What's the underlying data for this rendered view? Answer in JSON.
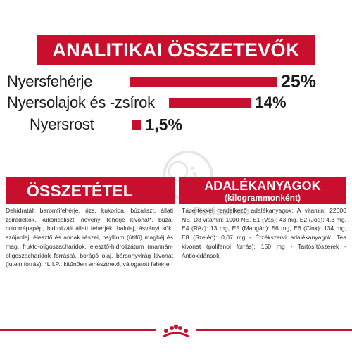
{
  "banner": {
    "title": "ANALITIKAI ÖSSZETEVŐK"
  },
  "colors": {
    "accent": "#c8102e"
  },
  "chart_data": {
    "type": "bar",
    "orientation": "horizontal",
    "categories": [
      "Nyersfehérje",
      "Nyersolajok és -zsírok",
      "Nyersrost"
    ],
    "values": [
      25,
      14,
      1.5
    ],
    "value_labels": [
      "25%",
      "14%",
      "1,5%"
    ],
    "unit": "%"
  },
  "composition": {
    "title": "ÖSSZETÉTEL",
    "text": "Dehidratált baromfifehérje, rizs, kukorica, búzaliszt, állati zsiradékok, kukoricaliszt, növényi fehérje kivonat*, búza, cukorrépapép, hidrolizált állati fehérjék, halolaj, ásványi sók, szójaolaj, élesztő és annak részei, psyllium (útifű) maghéj és mag, frukto-oligoszacharidok, élesztő-hidrolizátum (mannán-oligoszacharidok forrása), borágó olaj, bársonyvirág kivonat (lutein forrás). *L.I.P.: kitűnően emészthető, válogatott fehérje."
  },
  "additives": {
    "title": "ADALÉKANYAGOK",
    "subtitle": "(kilogrammonként)",
    "text": "Tápértékkel rendelkező adalékanyagok: A vitamin: 22000 NE, D3 vitamin: 1000 NE, E1 (Vas): 43 mg, E2 (Jód): 4,3 mg, E4 (Réz): 13 mg, E5 (Mangán): 56 mg, E6 (Cink): 134 mg, E8 (Szelén): 0,07 mg - Érzékszervi adalékanyagok: Tea kivonat (polifenol forrás): 150 mg - Tartósítószerek - Antioxidánsok."
  },
  "watermark": {
    "text": "Petissimo"
  },
  "icons": {
    "logo": "royal-canin-crown-icon",
    "watermark": "elephant-logo-icon"
  }
}
